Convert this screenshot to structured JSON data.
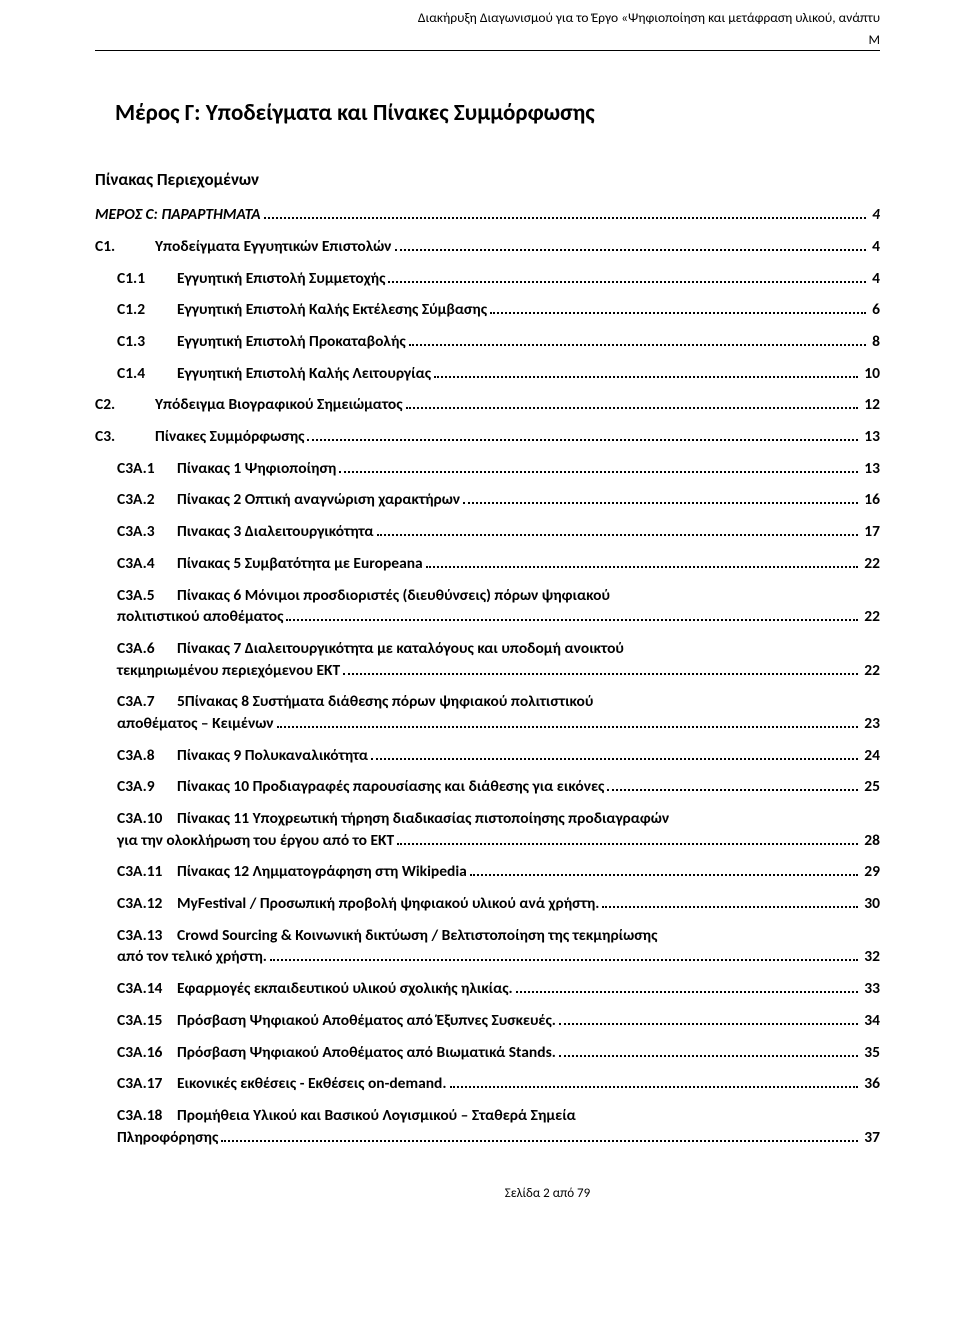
{
  "header": {
    "line1": "Διακήρυξη Διαγωνισμού για το Έργο «Ψηφιοποίηση και μετάφραση υλικού, ανάπτυ",
    "line2": "Μ"
  },
  "main_title": "Μέρος Γ: Υποδείγματα και Πίνακες Συμμόρφωσης",
  "toc_title": "Πίνακας Περιεχομένων",
  "entries": [
    {
      "type": "simple",
      "level": 1,
      "bold": true,
      "code": "",
      "label": "ΜΕΡΟΣ C: ΠΑΡΑΡΤΗΜΑΤΑ",
      "page": "4"
    },
    {
      "type": "simple",
      "level": 2,
      "bold": true,
      "code": "C1.",
      "label": "Υποδείγματα Εγγυητικών Επιστολών",
      "page": "4"
    },
    {
      "type": "simple",
      "level": 3,
      "bold": true,
      "code": "C1.1",
      "label": "Εγγυητική Επιστολή Συμμετοχής",
      "page": "4"
    },
    {
      "type": "simple",
      "level": 3,
      "bold": true,
      "code": "C1.2",
      "label": "Εγγυητική Επιστολή Καλής Εκτέλεσης Σύμβασης",
      "page": "6"
    },
    {
      "type": "simple",
      "level": 3,
      "bold": true,
      "code": "C1.3",
      "label": "Εγγυητική Επιστολή Προκαταβολής",
      "page": "8"
    },
    {
      "type": "simple",
      "level": 3,
      "bold": true,
      "code": "C1.4",
      "label": "Εγγυητική Επιστολή Καλής Λειτουργίας",
      "page": "10"
    },
    {
      "type": "simple",
      "level": 2,
      "bold": true,
      "code": "C2.",
      "label": "Υπόδειγμα Βιογραφικού Σημειώματος",
      "page": "12"
    },
    {
      "type": "simple",
      "level": 2,
      "bold": true,
      "code": "C3.",
      "label": "Πίνακες Συμμόρφωσης",
      "page": "13"
    },
    {
      "type": "simple",
      "level": 3,
      "bold": true,
      "code": "C3A.1",
      "label": "Πίνακας 1 Ψηφιοποίηση",
      "page": "13"
    },
    {
      "type": "simple",
      "level": 3,
      "bold": true,
      "code": "C3A.2",
      "label": "Πίνακας 2 Οπτική αναγνώριση χαρακτήρων",
      "page": "16"
    },
    {
      "type": "simple",
      "level": 3,
      "bold": true,
      "code": "C3A.3",
      "label": "Πινακας 3 Διαλειτουργικότητα",
      "page": "17"
    },
    {
      "type": "simple",
      "level": 3,
      "bold": true,
      "code": "C3A.4",
      "label": "Πίνακας 5 Συμβατότητα με Europeana",
      "page": "22"
    },
    {
      "type": "multi",
      "level": 3,
      "bold": true,
      "code": "C3A.5",
      "label1": "Πίνακας 6 Μόνιμοι προσδιοριστές (διευθύνσεις) πόρων ψηφιακού",
      "label2": "πολιτιστικού αποθέματος",
      "page": "22"
    },
    {
      "type": "multi",
      "level": 3,
      "bold": true,
      "code": "C3A.6",
      "label1": "Πίνακας 7 Διαλειτουργικότητα με καταλόγους και υποδομή ανοικτού",
      "label2": "τεκμηριωμένου περιεχόμενου ΕΚΤ",
      "page": "22"
    },
    {
      "type": "multi",
      "level": 3,
      "bold": true,
      "code": "C3A.7",
      "label1": "5Πίνακας 8 Συστήματα διάθεσης πόρων ψηφιακού πολιτιστικού",
      "label2": "αποθέματος – Κειμένων",
      "page": "23"
    },
    {
      "type": "simple",
      "level": 3,
      "bold": true,
      "code": "C3A.8",
      "label": "Πίνακας 9 Πολυκαναλικότητα",
      "page": "24"
    },
    {
      "type": "simple",
      "level": 3,
      "bold": true,
      "code": "C3A.9",
      "label": "Πίνακας 10 Προδιαγραφές παρουσίασης και διάθεσης για εικόνες",
      "page": "25"
    },
    {
      "type": "multi",
      "level": 3,
      "bold": true,
      "code": "C3A.10",
      "label1": "Πίνακας 11 Υποχρεωτική τήρηση διαδικασίας πιστοποίησης προδιαγραφών",
      "label2": "για την ολοκλήρωση του έργου από το ΕΚΤ",
      "page": "28"
    },
    {
      "type": "simple",
      "level": 3,
      "bold": true,
      "code": "C3A.11",
      "label": "Πίνακας 12 Λημματογράφηση στη Wikipedia",
      "page": "29"
    },
    {
      "type": "simple",
      "level": 3,
      "bold": true,
      "code": "C3A.12",
      "label": "MyFestival / Προσωπική προβολή ψηφιακού υλικού ανά χρήστη.",
      "page": "30"
    },
    {
      "type": "multi",
      "level": 3,
      "bold": true,
      "code": "C3A.13",
      "label1": "Crowd Sourcing & Κοινωνική δικτύωση / Βελτιστοποίηση της τεκμηρίωσης",
      "label2": "από τον τελικό χρήστη.",
      "page": "32"
    },
    {
      "type": "simple",
      "level": 3,
      "bold": true,
      "code": "C3A.14",
      "label": "Εφαρμογές εκπαιδευτικού υλικού σχολικής ηλικίας.",
      "page": "33"
    },
    {
      "type": "simple",
      "level": 3,
      "bold": true,
      "code": "C3A.15",
      "label": "Πρόσβαση Ψηφιακού Αποθέματος από Έξυπνες Συσκευές.",
      "page": "34"
    },
    {
      "type": "simple",
      "level": 3,
      "bold": true,
      "code": "C3A.16",
      "label": "Πρόσβαση Ψηφιακού Αποθέματος από Βιωματικά Stands.",
      "page": "35"
    },
    {
      "type": "simple",
      "level": 3,
      "bold": true,
      "code": "C3A.17",
      "label": "Εικονικές εκθέσεις - Εκθέσεις on-demand.",
      "page": "36"
    },
    {
      "type": "multi",
      "level": 3,
      "bold": true,
      "code": "C3A.18",
      "label1": "Προμήθεια Υλικού και Βασικού Λογισμικού – Σταθερά Σημεία",
      "label2": "Πληροφόρησης",
      "page": "37"
    }
  ],
  "footer": "Σελίδα 2 από 79",
  "colors": {
    "text": "#000000",
    "background": "#ffffff"
  }
}
